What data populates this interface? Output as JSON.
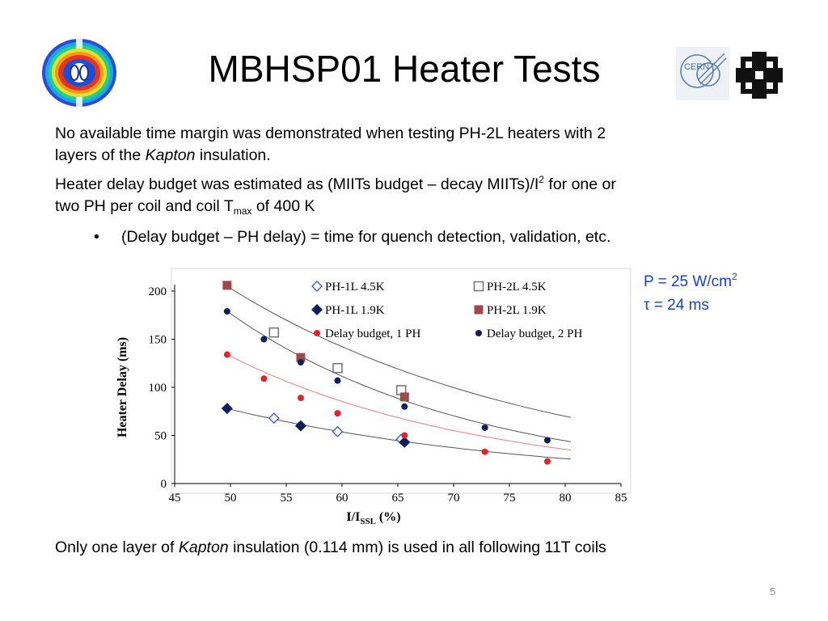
{
  "slide": {
    "title": "MBHSP01 Heater Tests",
    "p1_a": "No available time margin was demonstrated when testing PH-2L heaters with 2",
    "p1_b": "layers of the ",
    "p1_kapton": "Kapton",
    "p1_c": " insulation.",
    "p2_a": "Heater delay budget was estimated as (MIITs budget – decay MIITs)/I",
    "p2_sup": "2",
    "p2_b": " for one or",
    "p2_c": "two PH per coil and coil T",
    "p2_sub": "max",
    "p2_d": " of 400 K",
    "bullet_char": "•",
    "bullet_text": "(Delay budget – PH delay) = time for quench detection, validation, etc.",
    "note_line1": "P = 25 W/cm",
    "note_sup": "2",
    "note_line2": "τ = 24 ms",
    "bottom_a": "Only one layer of ",
    "bottom_kapton": "Kapton",
    "bottom_b": " insulation (0.114 mm) is used in all following 11T coils",
    "page_number": "5",
    "logo_cern_text": "CERN"
  },
  "chart_data": {
    "type": "scatter",
    "ylabel": "Heater Delay (ms)",
    "xlabel_main": "I/I",
    "xlabel_sub": "SSL",
    "xlabel_tail": " (%)",
    "xlim": [
      45,
      85
    ],
    "ylim": [
      0,
      200
    ],
    "xticks": [
      "45",
      "50",
      "55",
      "60",
      "65",
      "70",
      "75",
      "80",
      "85"
    ],
    "yticks": [
      "0",
      "50",
      "100",
      "150",
      "200"
    ],
    "colors": {
      "navy": "#0b1f5c",
      "blue_open": "#3f5fd0",
      "grey": "#6a6a6a",
      "maroon": "#a24848",
      "red": "#e8202a",
      "fit_red": "#f08080",
      "fit_grey": "#555555"
    },
    "series": [
      {
        "name": "PH-1L 4.5K",
        "marker": "diamond-open",
        "color": "#3f5fd0",
        "x": [
          53.9,
          59.6,
          65.3
        ],
        "y": [
          68,
          54,
          46
        ]
      },
      {
        "name": "PH-2L 4.5K",
        "marker": "square-open",
        "color": "#777777",
        "x": [
          53.9,
          59.6,
          65.3
        ],
        "y": [
          157,
          120,
          97
        ]
      },
      {
        "name": "PH-1L 1.9K",
        "marker": "diamond",
        "color": "#0b1f5c",
        "x": [
          49.7,
          56.3,
          65.6
        ],
        "y": [
          78,
          60,
          43
        ]
      },
      {
        "name": "PH-2L 1.9K",
        "marker": "square",
        "color": "#a24848",
        "x": [
          49.7,
          56.3,
          65.6
        ],
        "y": [
          206,
          131,
          90
        ]
      },
      {
        "name": "Delay budget, 1 PH",
        "marker": "circle",
        "color": "#e8202a",
        "x": [
          49.7,
          53.0,
          56.3,
          59.6,
          65.6,
          72.8,
          78.4
        ],
        "y": [
          134,
          109,
          89,
          73,
          50,
          33,
          23
        ]
      },
      {
        "name": "Delay budget, 2 PH",
        "marker": "circle",
        "color": "#0b1f5c",
        "x": [
          49.7,
          53.0,
          56.3,
          59.6,
          65.6,
          72.8,
          78.4
        ],
        "y": [
          179,
          150,
          126,
          107,
          80,
          58,
          45
        ]
      }
    ],
    "fits": [
      {
        "color": "#555555",
        "a": 205,
        "b": 0.0355,
        "x0": 49.7,
        "x1": 80.5
      },
      {
        "color": "#f08080",
        "a": 134,
        "b": 0.0438,
        "x0": 49.7,
        "x1": 80.5
      },
      {
        "color": "#555555",
        "a": 179,
        "b": 0.046,
        "x0": 49.7,
        "x1": 80.5
      },
      {
        "color": "#555555",
        "a": 78,
        "b": 0.0365,
        "x0": 49.7,
        "x1": 80.5
      }
    ]
  }
}
